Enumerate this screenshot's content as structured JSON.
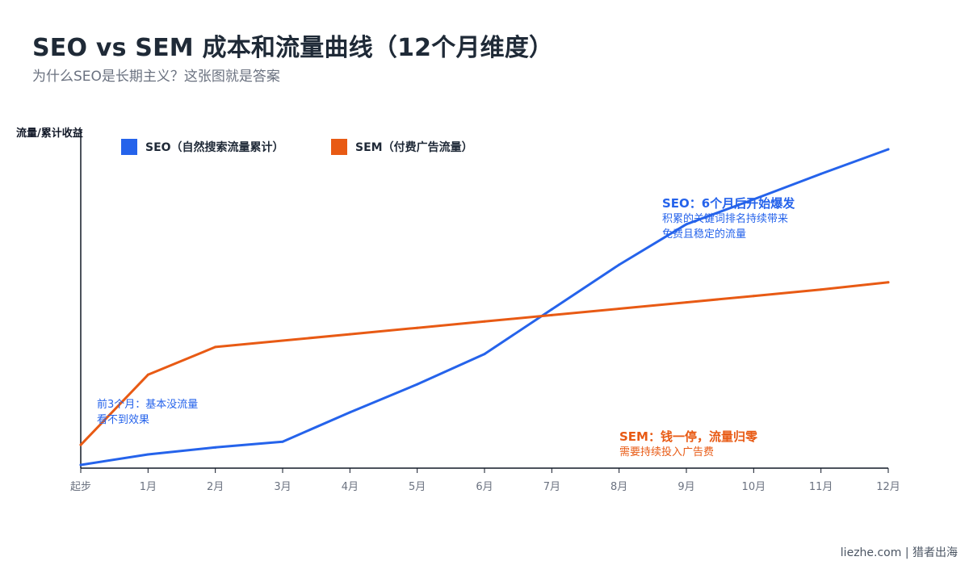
{
  "title": "SEO vs SEM 成本和流量曲线（12个月维度）",
  "subtitle": "为什么SEO是长期主义？这张图就是答案",
  "footer": "liezhe.com | 猎者出海",
  "colors": {
    "seo": "#2563eb",
    "sem": "#e85a14",
    "axis": "#111827",
    "tick_text": "#6b7280"
  },
  "chart_data": {
    "type": "line",
    "ylabel": "流量/累计收益",
    "xlabel": "",
    "categories": [
      "起步",
      "1月",
      "2月",
      "3月",
      "4月",
      "5月",
      "6月",
      "7月",
      "8月",
      "9月",
      "10月",
      "11月",
      "12月"
    ],
    "ylim": [
      0,
      100
    ],
    "grid": false,
    "legend_position": "top-left",
    "series": [
      {
        "name": "SEO（自然搜索流量累计）",
        "color_key": "seo",
        "values": [
          1,
          4.3,
          6.5,
          8.3,
          17.5,
          26.3,
          35.8,
          49.8,
          63.8,
          76.5,
          84.3,
          92.3,
          100
        ]
      },
      {
        "name": "SEM（付费广告流量）",
        "color_key": "sem",
        "values": [
          7.3,
          29.3,
          38,
          40,
          42,
          44,
          46,
          48,
          50,
          52,
          54,
          56,
          58.3
        ]
      }
    ],
    "annotations": {
      "seo_peak": {
        "head": "SEO：6个月后开始爆发",
        "line1": "积累的关键词排名持续带来",
        "line2": "免费且稳定的流量"
      },
      "early": {
        "line1": "前3个月：基本没流量",
        "line2": "看不到效果"
      },
      "sem_stop": {
        "head": "SEM：钱一停，流量归零",
        "line1": "需要持续投入广告费"
      }
    }
  }
}
